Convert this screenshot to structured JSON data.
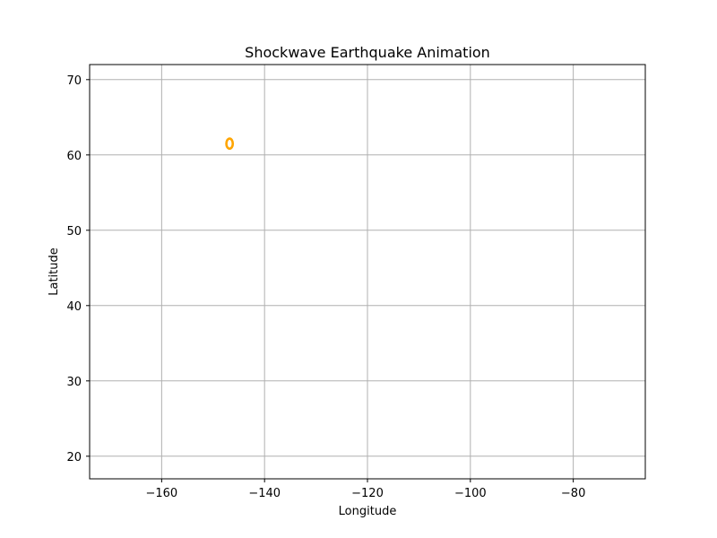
{
  "chart_data": {
    "type": "scatter",
    "title": "Shockwave Earthquake Animation",
    "xlabel": "Longitude",
    "ylabel": "Latitude",
    "xlim": [
      -174,
      -66
    ],
    "ylim": [
      17,
      72
    ],
    "grid": true,
    "x_ticks": [
      -160,
      -140,
      -120,
      -100,
      -80
    ],
    "x_tick_labels": [
      "−160",
      "−140",
      "−120",
      "−100",
      "−80"
    ],
    "y_ticks": [
      20,
      30,
      40,
      50,
      60,
      70
    ],
    "y_tick_labels": [
      "20",
      "30",
      "40",
      "50",
      "60",
      "70"
    ],
    "series": [
      {
        "marker": "ring",
        "color": "#FFA500",
        "points": [
          {
            "x": -146.8,
            "y": 61.5
          }
        ]
      }
    ]
  }
}
